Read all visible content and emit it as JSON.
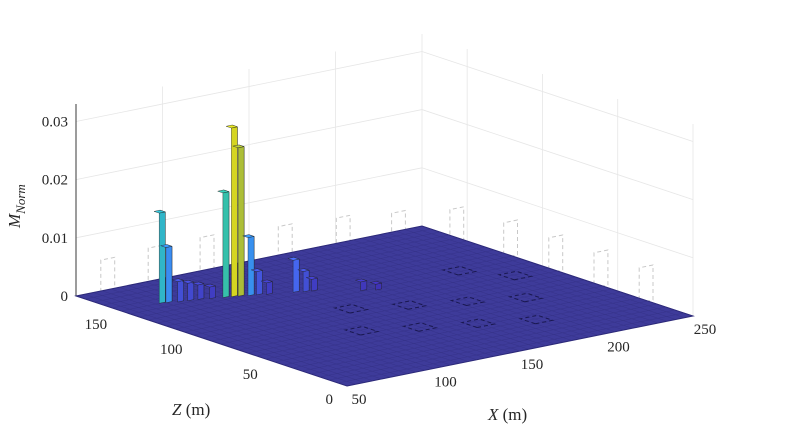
{
  "chart_data": {
    "type": "bar3d",
    "title": "",
    "xlabel": {
      "symbol": "X",
      "unit": " (m)"
    },
    "zlabel": {
      "symbol": "Z",
      "unit": " (m)"
    },
    "ylabel": {
      "symbol": "M",
      "subscript": "Norm"
    },
    "x_ticks": [
      50,
      100,
      150,
      200,
      250
    ],
    "z_ticks": [
      0,
      50,
      100,
      150
    ],
    "y_ticks": [
      0,
      0.01,
      0.02,
      0.03
    ],
    "x_tick_labels": [
      "50",
      "100",
      "150",
      "200",
      "250"
    ],
    "z_tick_labels": [
      "0",
      "50",
      "100",
      "150"
    ],
    "y_tick_labels": [
      "0",
      "0.01",
      "0.02",
      "0.03"
    ],
    "xlim": [
      50,
      250
    ],
    "zlim": [
      0,
      180
    ],
    "ylim": [
      0,
      0.033
    ],
    "grid": true,
    "colormap": "parula",
    "surface_color": "#3e3b9a",
    "peaks": [
      {
        "x": 72,
        "z": 150,
        "value": 0.0155
      },
      {
        "x": 75,
        "z": 149,
        "value": 0.0095
      },
      {
        "x": 80,
        "z": 147,
        "value": 0.0035
      },
      {
        "x": 85,
        "z": 146,
        "value": 0.003
      },
      {
        "x": 90,
        "z": 145,
        "value": 0.0025
      },
      {
        "x": 95,
        "z": 143,
        "value": 0.002
      },
      {
        "x": 105,
        "z": 140,
        "value": 0.029
      },
      {
        "x": 108,
        "z": 139,
        "value": 0.0255
      },
      {
        "x": 101,
        "z": 141,
        "value": 0.018
      },
      {
        "x": 112,
        "z": 137,
        "value": 0.01
      },
      {
        "x": 116,
        "z": 136,
        "value": 0.004
      },
      {
        "x": 120,
        "z": 134,
        "value": 0.002
      },
      {
        "x": 132,
        "z": 130,
        "value": 0.0055
      },
      {
        "x": 136,
        "z": 128,
        "value": 0.0035
      },
      {
        "x": 140,
        "z": 127,
        "value": 0.002
      },
      {
        "x": 158,
        "z": 115,
        "value": 0.0015
      },
      {
        "x": 164,
        "z": 112,
        "value": 0.001
      }
    ]
  }
}
